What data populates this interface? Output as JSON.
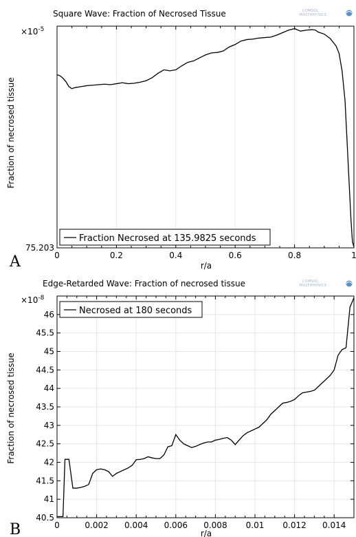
{
  "chart_data": [
    {
      "panel": "A",
      "type": "line",
      "title": "Square Wave: Fraction of Necrosed Tissue",
      "xlabel": "r/a",
      "ylabel": "Fraction of necrosed tissue",
      "y_multiplier": "×10",
      "y_multiplier_exp": "-5",
      "xlim": [
        0,
        1
      ],
      "ylim": [
        75.203,
        75.65
      ],
      "x_ticks": [
        "0",
        "0.2",
        "0.4",
        "0.6",
        "0.8",
        "1"
      ],
      "y_ticks": [
        "75.203"
      ],
      "legend_position": "bottom-left",
      "grid": true,
      "logo": "COMSOL MULTIPHYSICS",
      "series": [
        {
          "name": "Fraction Necrosed at 135.9825 seconds",
          "x": [
            0.0,
            0.01,
            0.02,
            0.03,
            0.04,
            0.05,
            0.06,
            0.08,
            0.1,
            0.12,
            0.14,
            0.16,
            0.18,
            0.2,
            0.22,
            0.24,
            0.26,
            0.28,
            0.3,
            0.32,
            0.34,
            0.36,
            0.38,
            0.4,
            0.42,
            0.44,
            0.46,
            0.48,
            0.5,
            0.52,
            0.54,
            0.56,
            0.58,
            0.6,
            0.62,
            0.64,
            0.66,
            0.68,
            0.7,
            0.72,
            0.74,
            0.76,
            0.78,
            0.8,
            0.82,
            0.84,
            0.86,
            0.87,
            0.88,
            0.9,
            0.92,
            0.94,
            0.95,
            0.96,
            0.97,
            0.975,
            0.98,
            0.985,
            0.99,
            0.995,
            1.0
          ],
          "y": [
            75.552,
            75.55,
            75.545,
            75.538,
            75.528,
            75.524,
            75.526,
            75.528,
            75.53,
            75.531,
            75.532,
            75.533,
            75.532,
            75.534,
            75.536,
            75.534,
            75.535,
            75.537,
            75.54,
            75.546,
            75.555,
            75.562,
            75.56,
            75.562,
            75.57,
            75.577,
            75.58,
            75.586,
            75.592,
            75.596,
            75.597,
            75.6,
            75.608,
            75.613,
            75.62,
            75.623,
            75.624,
            75.626,
            75.627,
            75.628,
            75.632,
            75.637,
            75.642,
            75.645,
            75.64,
            75.642,
            75.643,
            75.642,
            75.638,
            75.634,
            75.625,
            75.61,
            75.595,
            75.56,
            75.5,
            75.44,
            75.38,
            75.32,
            75.26,
            75.215,
            75.205
          ]
        }
      ]
    },
    {
      "panel": "B",
      "type": "line",
      "title": "Edge-Retarded Wave: Fraction of necrosed tissue",
      "xlabel": "r/a",
      "ylabel": "Fraction of necrosed tissue",
      "y_multiplier": "×10",
      "y_multiplier_exp": "-8",
      "xlim": [
        0,
        0.015
      ],
      "ylim": [
        40.5,
        46.5
      ],
      "x_ticks": [
        "0",
        "0.002",
        "0.004",
        "0.006",
        "0.008",
        "0.01",
        "0.012",
        "0.014"
      ],
      "y_ticks": [
        "40.5",
        "41",
        "41.5",
        "42",
        "42.5",
        "43",
        "43.5",
        "44",
        "44.5",
        "45",
        "45.5",
        "46"
      ],
      "legend_position": "top-left",
      "grid": true,
      "logo": "COMSOL MULTIPHYSICS",
      "series": [
        {
          "name": "Necrosed at 180 seconds",
          "x": [
            0.0,
            0.0003,
            0.0004,
            0.0006,
            0.0008,
            0.001,
            0.0012,
            0.0014,
            0.0016,
            0.0018,
            0.002,
            0.0022,
            0.0024,
            0.0026,
            0.0028,
            0.003,
            0.0032,
            0.0034,
            0.0036,
            0.0038,
            0.004,
            0.0042,
            0.0044,
            0.0046,
            0.0048,
            0.005,
            0.0052,
            0.0054,
            0.0056,
            0.0058,
            0.006,
            0.0062,
            0.0064,
            0.0066,
            0.0068,
            0.007,
            0.0072,
            0.0074,
            0.0076,
            0.0078,
            0.008,
            0.0082,
            0.0084,
            0.0086,
            0.0088,
            0.009,
            0.0092,
            0.0094,
            0.0096,
            0.0098,
            0.01,
            0.0102,
            0.0104,
            0.0106,
            0.0108,
            0.011,
            0.0112,
            0.0114,
            0.0116,
            0.0118,
            0.012,
            0.0122,
            0.0124,
            0.0126,
            0.0128,
            0.013,
            0.0132,
            0.0134,
            0.0136,
            0.0138,
            0.014,
            0.0142,
            0.0144,
            0.0146,
            0.0148,
            0.015
          ],
          "y": [
            40.53,
            40.53,
            42.08,
            42.08,
            41.3,
            41.3,
            41.32,
            41.35,
            41.4,
            41.7,
            41.8,
            41.82,
            41.8,
            41.75,
            41.62,
            41.7,
            41.75,
            41.8,
            41.85,
            41.92,
            42.07,
            42.08,
            42.1,
            42.15,
            42.12,
            42.1,
            42.1,
            42.2,
            42.42,
            42.45,
            42.75,
            42.6,
            42.5,
            42.45,
            42.4,
            42.43,
            42.48,
            42.52,
            42.55,
            42.55,
            42.6,
            42.62,
            42.65,
            42.67,
            42.6,
            42.48,
            42.6,
            42.72,
            42.8,
            42.85,
            42.9,
            42.95,
            43.05,
            43.15,
            43.3,
            43.4,
            43.5,
            43.6,
            43.62,
            43.65,
            43.7,
            43.8,
            43.88,
            43.9,
            43.92,
            43.95,
            44.05,
            44.15,
            44.25,
            44.35,
            44.5,
            44.9,
            45.05,
            45.1,
            46.2,
            46.45
          ]
        }
      ]
    }
  ]
}
